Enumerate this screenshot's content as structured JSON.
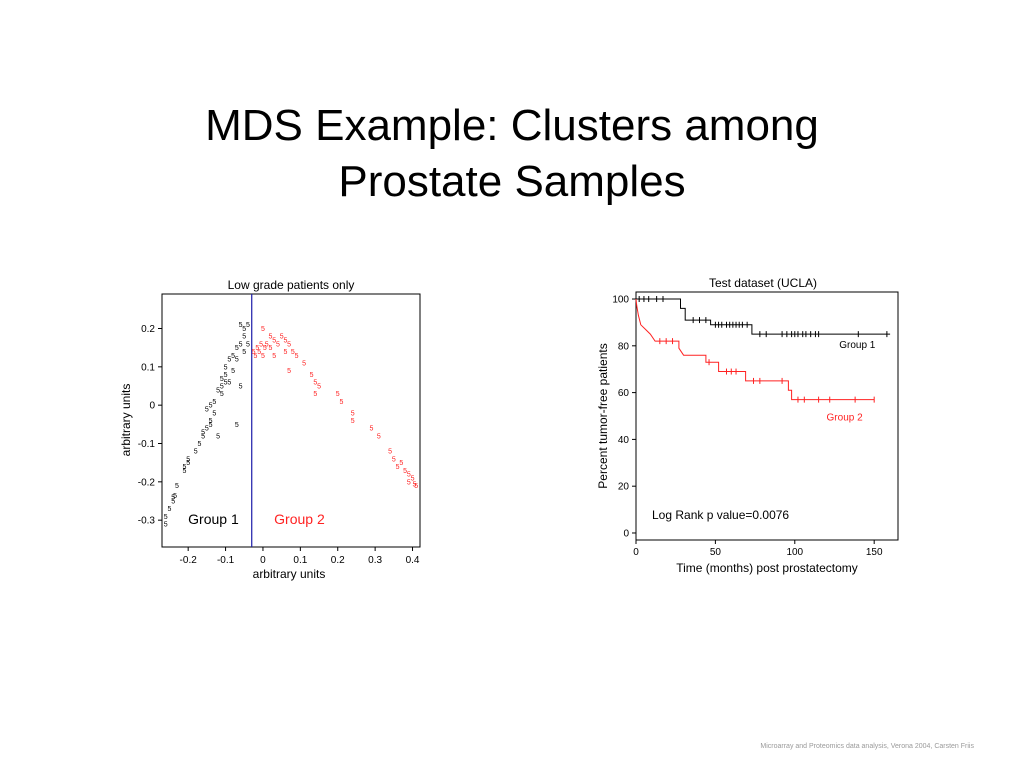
{
  "slide": {
    "title_line1": "MDS Example: Clusters among",
    "title_line2": "Prostate Samples",
    "footer": "Microarray and Proteomics data analysis, Verona 2004, Carsten Friis"
  },
  "chart_data": [
    {
      "type": "scatter",
      "title": "Low grade patients only",
      "xlabel": "arbitrary units",
      "ylabel": "arbitrary units",
      "xlim": [
        -0.27,
        0.42
      ],
      "ylim": [
        -0.37,
        0.29
      ],
      "xticks": [
        -0.2,
        -0.1,
        0,
        0.1,
        0.2,
        0.3,
        0.4
      ],
      "xtick_labels": [
        "-0.2",
        "-0.1",
        "0",
        "0.1",
        "0.2",
        "0.3",
        "0.4"
      ],
      "yticks": [
        -0.3,
        -0.2,
        -0.1,
        0,
        0.1,
        0.2
      ],
      "ytick_labels": [
        "-0.3",
        "-0.2",
        "-0.1",
        "0",
        "0.1",
        "0.2"
      ],
      "divider_x": -0.03,
      "divider_color": "#1a1aa8",
      "point_marker": "5",
      "group_labels": [
        {
          "text": "Group 1",
          "x": -0.2,
          "y": -0.31,
          "color": "#000000"
        },
        {
          "text": "Group 2",
          "x": 0.03,
          "y": -0.31,
          "color": "#ff2222"
        }
      ],
      "series": [
        {
          "name": "Group 1",
          "color": "#000000",
          "points": [
            [
              -0.26,
              -0.31
            ],
            [
              -0.26,
              -0.29
            ],
            [
              -0.25,
              -0.27
            ],
            [
              -0.24,
              -0.24
            ],
            [
              -0.235,
              -0.235
            ],
            [
              -0.24,
              -0.25
            ],
            [
              -0.23,
              -0.21
            ],
            [
              -0.21,
              -0.16
            ],
            [
              -0.2,
              -0.15
            ],
            [
              -0.2,
              -0.14
            ],
            [
              -0.21,
              -0.17
            ],
            [
              -0.18,
              -0.12
            ],
            [
              -0.17,
              -0.1
            ],
            [
              -0.16,
              -0.08
            ],
            [
              -0.15,
              -0.06
            ],
            [
              -0.14,
              -0.04
            ],
            [
              -0.13,
              -0.02
            ],
            [
              -0.15,
              -0.01
            ],
            [
              -0.14,
              0.0
            ],
            [
              -0.13,
              0.01
            ],
            [
              -0.12,
              0.04
            ],
            [
              -0.11,
              0.05
            ],
            [
              -0.1,
              0.06
            ],
            [
              -0.11,
              0.07
            ],
            [
              -0.1,
              0.08
            ],
            [
              -0.1,
              0.1
            ],
            [
              -0.09,
              0.12
            ],
            [
              -0.08,
              0.13
            ],
            [
              -0.07,
              0.15
            ],
            [
              -0.06,
              0.16
            ],
            [
              -0.05,
              0.18
            ],
            [
              -0.05,
              0.2
            ],
            [
              -0.06,
              0.21
            ],
            [
              -0.04,
              0.21
            ],
            [
              -0.07,
              0.12
            ],
            [
              -0.08,
              0.09
            ],
            [
              -0.06,
              0.05
            ],
            [
              -0.09,
              0.06
            ],
            [
              -0.12,
              -0.08
            ],
            [
              -0.16,
              -0.07
            ],
            [
              -0.14,
              -0.05
            ],
            [
              -0.07,
              -0.05
            ],
            [
              -0.11,
              0.03
            ],
            [
              -0.05,
              0.14
            ],
            [
              -0.04,
              0.16
            ]
          ]
        },
        {
          "name": "Group 2",
          "color": "#ff2222",
          "points": [
            [
              -0.025,
              0.14
            ],
            [
              -0.02,
              0.13
            ],
            [
              -0.015,
              0.15
            ],
            [
              -0.01,
              0.14
            ],
            [
              0.0,
              0.13
            ],
            [
              0.005,
              0.15
            ],
            [
              -0.005,
              0.16
            ],
            [
              0.0,
              0.2
            ],
            [
              0.02,
              0.18
            ],
            [
              0.03,
              0.17
            ],
            [
              0.05,
              0.18
            ],
            [
              0.06,
              0.17
            ],
            [
              0.07,
              0.16
            ],
            [
              0.08,
              0.14
            ],
            [
              0.09,
              0.13
            ],
            [
              0.02,
              0.15
            ],
            [
              0.04,
              0.16
            ],
            [
              0.03,
              0.13
            ],
            [
              0.01,
              0.16
            ],
            [
              0.06,
              0.14
            ],
            [
              0.11,
              0.11
            ],
            [
              0.13,
              0.08
            ],
            [
              0.14,
              0.06
            ],
            [
              0.07,
              0.09
            ],
            [
              0.14,
              0.03
            ],
            [
              0.15,
              0.05
            ],
            [
              0.2,
              0.03
            ],
            [
              0.21,
              0.01
            ],
            [
              0.24,
              -0.02
            ],
            [
              0.24,
              -0.04
            ],
            [
              0.29,
              -0.06
            ],
            [
              0.31,
              -0.08
            ],
            [
              0.34,
              -0.12
            ],
            [
              0.35,
              -0.14
            ],
            [
              0.36,
              -0.16
            ],
            [
              0.37,
              -0.15
            ],
            [
              0.38,
              -0.17
            ],
            [
              0.39,
              -0.18
            ],
            [
              0.4,
              -0.19
            ],
            [
              0.41,
              -0.21
            ],
            [
              0.405,
              -0.205
            ],
            [
              0.39,
              -0.2
            ]
          ]
        }
      ]
    },
    {
      "type": "line",
      "subtype": "kaplan-meier",
      "title": "Test dataset (UCLA)",
      "xlabel": "Time (months) post prostatectomy",
      "ylabel": "Percent tumor-free patients",
      "xlim": [
        0,
        165
      ],
      "ylim": [
        -3,
        103
      ],
      "xticks": [
        0,
        50,
        100,
        150
      ],
      "xtick_labels": [
        "0",
        "50",
        "100",
        "150"
      ],
      "yticks": [
        0,
        20,
        40,
        60,
        80,
        100
      ],
      "ytick_labels": [
        "0",
        "20",
        "40",
        "60",
        "80",
        "100"
      ],
      "annotation": "Log Rank p value=0.0076",
      "series": [
        {
          "name": "Group 1",
          "label_at": [
            128,
            79
          ],
          "color": "#000000",
          "steps": [
            [
              0,
              100
            ],
            [
              28,
              100
            ],
            [
              28,
              96
            ],
            [
              31,
              96
            ],
            [
              31,
              91
            ],
            [
              47,
              91
            ],
            [
              47,
              89
            ],
            [
              73,
              89
            ],
            [
              73,
              85
            ],
            [
              160,
              85
            ]
          ],
          "censors": [
            [
              2,
              100
            ],
            [
              5,
              100
            ],
            [
              8,
              100
            ],
            [
              13,
              100
            ],
            [
              17,
              100
            ],
            [
              36,
              91
            ],
            [
              40,
              91
            ],
            [
              44,
              91
            ],
            [
              50,
              89
            ],
            [
              52,
              89
            ],
            [
              54,
              89
            ],
            [
              57,
              89
            ],
            [
              59,
              89
            ],
            [
              61,
              89
            ],
            [
              63,
              89
            ],
            [
              65,
              89
            ],
            [
              67,
              89
            ],
            [
              70,
              89
            ],
            [
              78,
              85
            ],
            [
              82,
              85
            ],
            [
              92,
              85
            ],
            [
              95,
              85
            ],
            [
              98,
              85
            ],
            [
              100,
              85
            ],
            [
              102,
              85
            ],
            [
              105,
              85
            ],
            [
              107,
              85
            ],
            [
              110,
              85
            ],
            [
              113,
              85
            ],
            [
              115,
              85
            ],
            [
              140,
              85
            ],
            [
              158,
              85
            ]
          ]
        },
        {
          "name": "Group 2",
          "label_at": [
            120,
            48
          ],
          "color": "#ff2222",
          "steps": [
            [
              0,
              100
            ],
            [
              0.5,
              97
            ],
            [
              1.5,
              93
            ],
            [
              3,
              89
            ],
            [
              6,
              87
            ],
            [
              9,
              85
            ],
            [
              12,
              82
            ],
            [
              27,
              82
            ],
            [
              27,
              79
            ],
            [
              30,
              76
            ],
            [
              44,
              76
            ],
            [
              44,
              73
            ],
            [
              52,
              73
            ],
            [
              52,
              69
            ],
            [
              69,
              69
            ],
            [
              69,
              65
            ],
            [
              96,
              65
            ],
            [
              96,
              61
            ],
            [
              98,
              61
            ],
            [
              98,
              57
            ],
            [
              150,
              57
            ]
          ],
          "censors": [
            [
              15,
              82
            ],
            [
              19,
              82
            ],
            [
              23,
              82
            ],
            [
              46,
              73
            ],
            [
              57,
              69
            ],
            [
              60,
              69
            ],
            [
              63,
              69
            ],
            [
              74,
              65
            ],
            [
              78,
              65
            ],
            [
              92,
              65
            ],
            [
              102,
              57
            ],
            [
              106,
              57
            ],
            [
              115,
              57
            ],
            [
              122,
              57
            ],
            [
              138,
              57
            ],
            [
              150,
              57
            ]
          ]
        }
      ]
    }
  ]
}
